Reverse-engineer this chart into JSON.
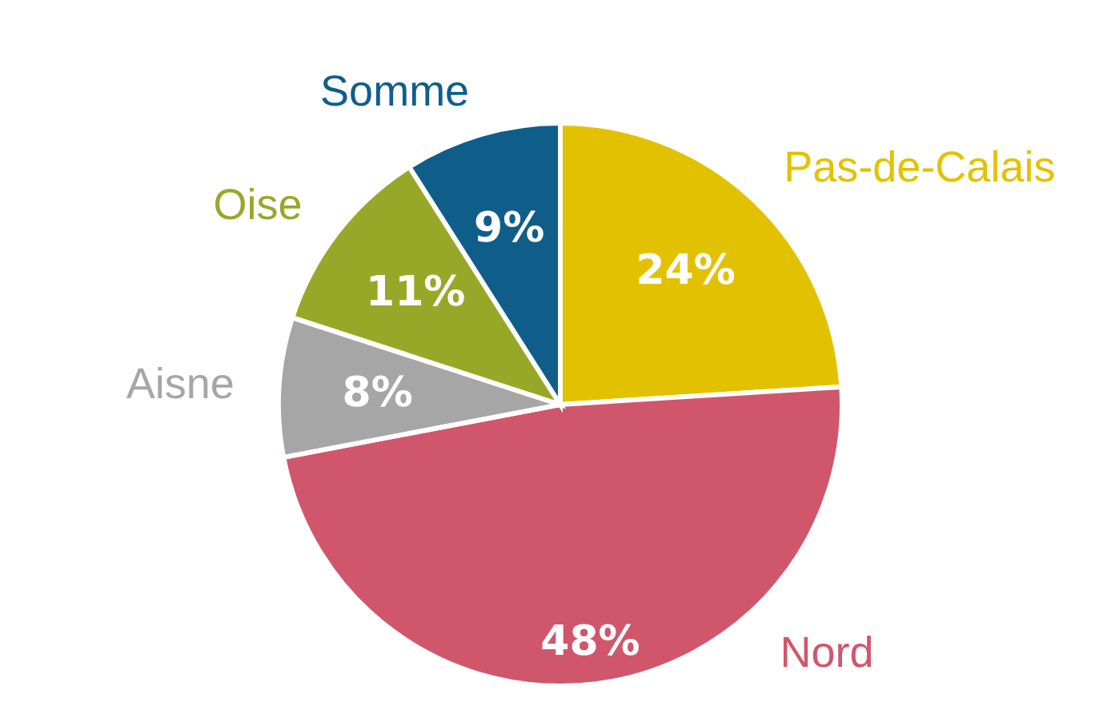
{
  "chart_data": {
    "type": "pie",
    "categories": [
      "Pas-de-Calais",
      "Nord",
      "Aisne",
      "Oise",
      "Somme"
    ],
    "values": [
      24,
      48,
      8,
      11,
      9
    ],
    "colors": [
      "#e2c200",
      "#d0576b",
      "#a6a6a6",
      "#97a829",
      "#0f5e8a"
    ],
    "value_labels": [
      "24%",
      "48%",
      "8%",
      "11%",
      "9%"
    ],
    "legend": false
  }
}
